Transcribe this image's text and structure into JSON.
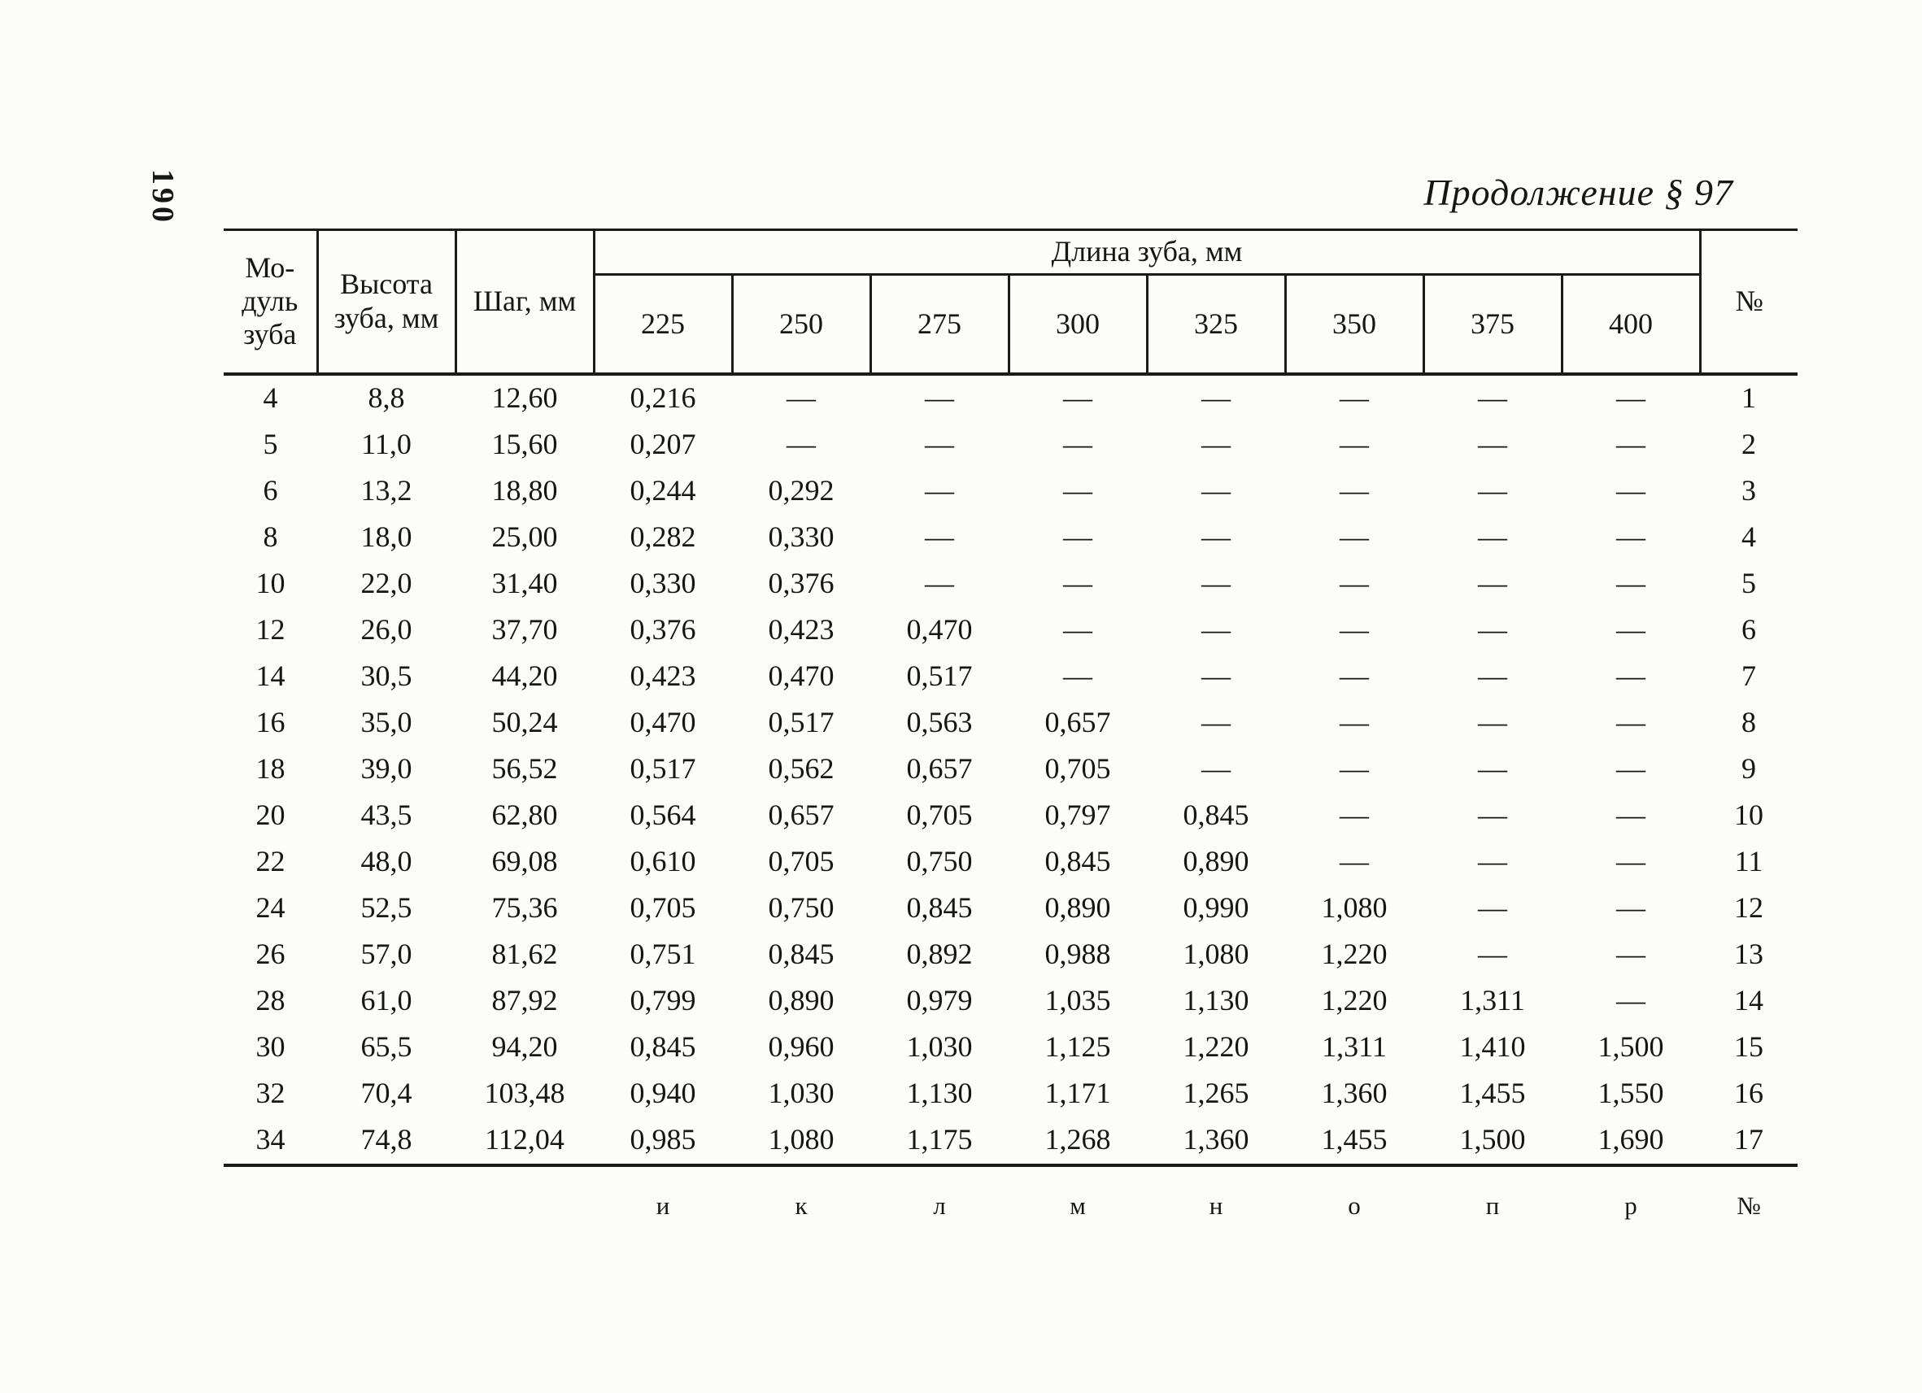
{
  "page": {
    "page_number": "190",
    "continuation_title": "Продолжение § 97"
  },
  "table": {
    "header": {
      "col_module": "Мо-\nдуль\nзуба",
      "col_height": "Высота\nзуба, мм",
      "col_pitch": "Шаг, мм",
      "col_group": "Длина зуба, мм",
      "lengths": [
        "225",
        "250",
        "275",
        "300",
        "325",
        "350",
        "375",
        "400"
      ],
      "col_no": "№"
    },
    "rows": [
      {
        "module": "4",
        "height": "8,8",
        "pitch": "12,60",
        "values": [
          "0,216",
          "—",
          "—",
          "—",
          "—",
          "—",
          "—",
          "—"
        ],
        "no": "1"
      },
      {
        "module": "5",
        "height": "11,0",
        "pitch": "15,60",
        "values": [
          "0,207",
          "—",
          "—",
          "—",
          "—",
          "—",
          "—",
          "—"
        ],
        "no": "2"
      },
      {
        "module": "6",
        "height": "13,2",
        "pitch": "18,80",
        "values": [
          "0,244",
          "0,292",
          "—",
          "—",
          "—",
          "—",
          "—",
          "—"
        ],
        "no": "3"
      },
      {
        "module": "8",
        "height": "18,0",
        "pitch": "25,00",
        "values": [
          "0,282",
          "0,330",
          "—",
          "—",
          "—",
          "—",
          "—",
          "—"
        ],
        "no": "4"
      },
      {
        "module": "10",
        "height": "22,0",
        "pitch": "31,40",
        "values": [
          "0,330",
          "0,376",
          "—",
          "—",
          "—",
          "—",
          "—",
          "—"
        ],
        "no": "5"
      },
      {
        "module": "12",
        "height": "26,0",
        "pitch": "37,70",
        "values": [
          "0,376",
          "0,423",
          "0,470",
          "—",
          "—",
          "—",
          "—",
          "—"
        ],
        "no": "6"
      },
      {
        "module": "14",
        "height": "30,5",
        "pitch": "44,20",
        "values": [
          "0,423",
          "0,470",
          "0,517",
          "—",
          "—",
          "—",
          "—",
          "—"
        ],
        "no": "7"
      },
      {
        "module": "16",
        "height": "35,0",
        "pitch": "50,24",
        "values": [
          "0,470",
          "0,517",
          "0,563",
          "0,657",
          "—",
          "—",
          "—",
          "—"
        ],
        "no": "8"
      },
      {
        "module": "18",
        "height": "39,0",
        "pitch": "56,52",
        "values": [
          "0,517",
          "0,562",
          "0,657",
          "0,705",
          "—",
          "—",
          "—",
          "—"
        ],
        "no": "9"
      },
      {
        "module": "20",
        "height": "43,5",
        "pitch": "62,80",
        "values": [
          "0,564",
          "0,657",
          "0,705",
          "0,797",
          "0,845",
          "—",
          "—",
          "—"
        ],
        "no": "10"
      },
      {
        "module": "22",
        "height": "48,0",
        "pitch": "69,08",
        "values": [
          "0,610",
          "0,705",
          "0,750",
          "0,845",
          "0,890",
          "—",
          "—",
          "—"
        ],
        "no": "11"
      },
      {
        "module": "24",
        "height": "52,5",
        "pitch": "75,36",
        "values": [
          "0,705",
          "0,750",
          "0,845",
          "0,890",
          "0,990",
          "1,080",
          "—",
          "—"
        ],
        "no": "12"
      },
      {
        "module": "26",
        "height": "57,0",
        "pitch": "81,62",
        "values": [
          "0,751",
          "0,845",
          "0,892",
          "0,988",
          "1,080",
          "1,220",
          "—",
          "—"
        ],
        "no": "13"
      },
      {
        "module": "28",
        "height": "61,0",
        "pitch": "87,92",
        "values": [
          "0,799",
          "0,890",
          "0,979",
          "1,035",
          "1,130",
          "1,220",
          "1,311",
          "—"
        ],
        "no": "14"
      },
      {
        "module": "30",
        "height": "65,5",
        "pitch": "94,20",
        "values": [
          "0,845",
          "0,960",
          "1,030",
          "1,125",
          "1,220",
          "1,311",
          "1,410",
          "1,500"
        ],
        "no": "15"
      },
      {
        "module": "32",
        "height": "70,4",
        "pitch": "103,48",
        "values": [
          "0,940",
          "1,030",
          "1,130",
          "1,171",
          "1,265",
          "1,360",
          "1,455",
          "1,550"
        ],
        "no": "16"
      },
      {
        "module": "34",
        "height": "74,8",
        "pitch": "112,04",
        "values": [
          "0,985",
          "1,080",
          "1,175",
          "1,268",
          "1,360",
          "1,455",
          "1,500",
          "1,690"
        ],
        "no": "17"
      }
    ],
    "footer": {
      "letters": [
        "и",
        "к",
        "л",
        "м",
        "н",
        "о",
        "п",
        "р"
      ],
      "no_label": "№"
    }
  }
}
